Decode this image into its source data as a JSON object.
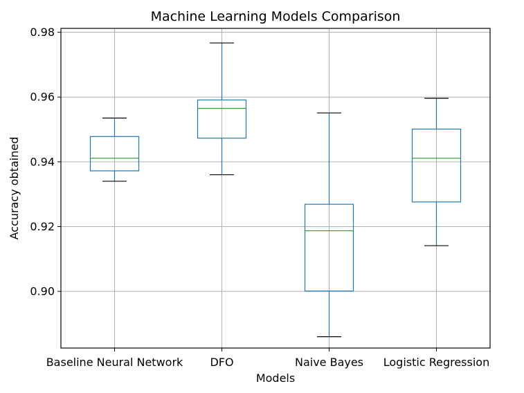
{
  "chart_data": {
    "type": "box",
    "title": "Machine Learning Models Comparison",
    "xlabel": "Models",
    "ylabel": "Accuracy obtained",
    "categories": [
      "Baseline Neural Network",
      "DFO",
      "Naive Bayes",
      "Logistic Regression"
    ],
    "boxes": [
      {
        "name": "Baseline Neural Network",
        "whisker_low": 0.934,
        "q1": 0.9372,
        "median": 0.9411,
        "q3": 0.9478,
        "whisker_high": 0.9535
      },
      {
        "name": "DFO",
        "whisker_low": 0.936,
        "q1": 0.9473,
        "median": 0.9565,
        "q3": 0.9591,
        "whisker_high": 0.9767
      },
      {
        "name": "Naive Bayes",
        "whisker_low": 0.886,
        "q1": 0.9001,
        "median": 0.9187,
        "q3": 0.9269,
        "whisker_high": 0.9551
      },
      {
        "name": "Logistic Regression",
        "whisker_low": 0.9141,
        "q1": 0.9276,
        "median": 0.9411,
        "q3": 0.9501,
        "whisker_high": 0.9596
      }
    ],
    "yticks": [
      0.9,
      0.92,
      0.94,
      0.96,
      0.98
    ],
    "ytick_labels": [
      "0.90",
      "0.92",
      "0.94",
      "0.96",
      "0.98"
    ],
    "ylim": [
      0.8825,
      0.9812
    ],
    "grid": true,
    "colors": {
      "box": "#1f77b4",
      "median": "#2ca02c",
      "whisker_cap": "#000000",
      "grid": "#b0b0b0"
    }
  }
}
